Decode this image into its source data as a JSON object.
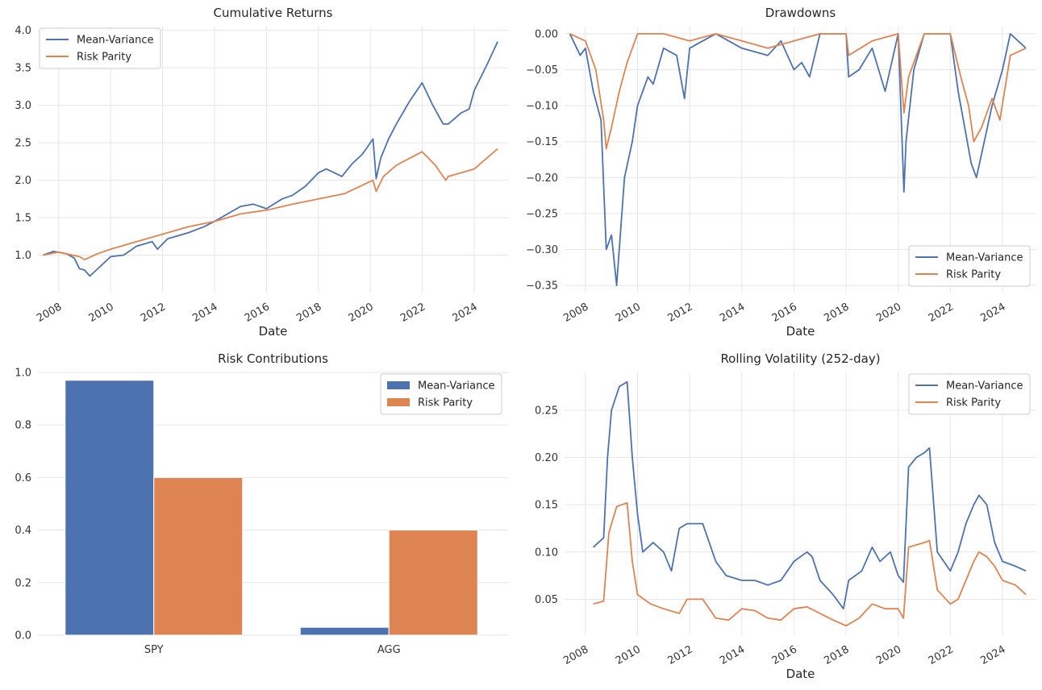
{
  "colors": {
    "mean_variance": "#4c72b0",
    "risk_parity": "#dd8452",
    "grid": "#e6e6e6",
    "text": "#262626"
  },
  "chart_data": [
    {
      "type": "line",
      "title": "Cumulative Returns",
      "xlabel": "Date",
      "ylabel": "",
      "xlim": [
        2007.2,
        2025.3
      ],
      "ylim": [
        0.5,
        4.05
      ],
      "xticks": [
        "2008",
        "2010",
        "2012",
        "2014",
        "2016",
        "2018",
        "2020",
        "2022",
        "2024"
      ],
      "yticks": [
        "1.0",
        "1.5",
        "2.0",
        "2.5",
        "3.0",
        "3.5",
        "4.0"
      ],
      "legend": "top-left",
      "grid": true,
      "series": [
        {
          "name": "Mean-Variance",
          "x": [
            2007.4,
            2007.8,
            2008.3,
            2008.6,
            2008.8,
            2009.0,
            2009.2,
            2009.6,
            2010.0,
            2010.5,
            2011.0,
            2011.6,
            2011.8,
            2012.2,
            2013.0,
            2013.6,
            2014.0,
            2014.5,
            2015.0,
            2015.5,
            2016.0,
            2016.6,
            2017.0,
            2017.5,
            2018.0,
            2018.3,
            2018.9,
            2019.3,
            2019.7,
            2020.1,
            2020.22,
            2020.4,
            2020.7,
            2021.0,
            2021.5,
            2021.99,
            2022.4,
            2022.8,
            2023.0,
            2023.5,
            2023.8,
            2024.0,
            2024.5,
            2024.9
          ],
          "y": [
            1.0,
            1.05,
            1.02,
            0.96,
            0.82,
            0.8,
            0.72,
            0.85,
            0.98,
            1.0,
            1.12,
            1.18,
            1.08,
            1.22,
            1.3,
            1.38,
            1.45,
            1.55,
            1.65,
            1.68,
            1.62,
            1.75,
            1.8,
            1.92,
            2.1,
            2.15,
            2.05,
            2.22,
            2.35,
            2.55,
            2.02,
            2.3,
            2.55,
            2.75,
            3.05,
            3.3,
            3.0,
            2.75,
            2.75,
            2.9,
            2.95,
            3.2,
            3.55,
            3.85
          ]
        },
        {
          "name": "Risk Parity",
          "x": [
            2007.4,
            2008.0,
            2008.8,
            2009.0,
            2009.5,
            2010.0,
            2011.0,
            2012.0,
            2013.0,
            2014.0,
            2015.0,
            2016.0,
            2017.0,
            2018.0,
            2019.0,
            2020.1,
            2020.22,
            2020.5,
            2021.0,
            2021.99,
            2022.5,
            2022.9,
            2023.0,
            2023.5,
            2024.0,
            2024.5,
            2024.9
          ],
          "y": [
            1.0,
            1.04,
            0.98,
            0.94,
            1.02,
            1.08,
            1.18,
            1.28,
            1.38,
            1.45,
            1.55,
            1.6,
            1.68,
            1.75,
            1.82,
            2.0,
            1.85,
            2.05,
            2.2,
            2.38,
            2.2,
            2.0,
            2.05,
            2.1,
            2.15,
            2.3,
            2.42
          ]
        }
      ]
    },
    {
      "type": "line",
      "title": "Drawdowns",
      "xlabel": "Date",
      "ylabel": "",
      "xlim": [
        2007.2,
        2025.3
      ],
      "ylim": [
        -0.36,
        0.01
      ],
      "xticks": [
        "2008",
        "2010",
        "2012",
        "2014",
        "2016",
        "2018",
        "2020",
        "2022",
        "2024"
      ],
      "yticks": [
        "0.00",
        "−0.05",
        "−0.10",
        "−0.15",
        "−0.20",
        "−0.25",
        "−0.30",
        "−0.35"
      ],
      "legend": "bottom-right",
      "grid": true,
      "series": [
        {
          "name": "Mean-Variance",
          "x": [
            2007.4,
            2007.8,
            2008.0,
            2008.3,
            2008.6,
            2008.8,
            2009.0,
            2009.2,
            2009.5,
            2009.8,
            2010.0,
            2010.4,
            2010.6,
            2011.0,
            2011.5,
            2011.8,
            2012.0,
            2012.5,
            2013.0,
            2013.5,
            2014.0,
            2015.0,
            2015.5,
            2016.0,
            2016.3,
            2016.6,
            2017.0,
            2018.0,
            2018.1,
            2018.5,
            2019.0,
            2019.5,
            2020.0,
            2020.22,
            2020.3,
            2020.6,
            2021.0,
            2021.5,
            2022.0,
            2022.3,
            2022.5,
            2022.8,
            2023.0,
            2023.3,
            2023.6,
            2024.0,
            2024.3,
            2024.6,
            2024.9
          ],
          "y": [
            0.0,
            -0.03,
            -0.02,
            -0.08,
            -0.12,
            -0.3,
            -0.28,
            -0.35,
            -0.2,
            -0.15,
            -0.1,
            -0.06,
            -0.07,
            -0.02,
            -0.03,
            -0.09,
            -0.02,
            -0.01,
            0.0,
            -0.01,
            -0.02,
            -0.03,
            -0.01,
            -0.05,
            -0.04,
            -0.06,
            0.0,
            0.0,
            -0.06,
            -0.05,
            -0.02,
            -0.08,
            0.0,
            -0.22,
            -0.15,
            -0.05,
            0.0,
            0.0,
            0.0,
            -0.08,
            -0.12,
            -0.18,
            -0.2,
            -0.15,
            -0.1,
            -0.05,
            0.0,
            -0.01,
            -0.02
          ]
        },
        {
          "name": "Risk Parity",
          "x": [
            2007.4,
            2008.0,
            2008.4,
            2008.7,
            2008.8,
            2009.0,
            2009.3,
            2009.6,
            2010.0,
            2011.0,
            2012.0,
            2013.0,
            2014.0,
            2015.0,
            2016.0,
            2017.0,
            2018.0,
            2018.1,
            2019.0,
            2020.0,
            2020.22,
            2020.4,
            2020.7,
            2021.0,
            2022.0,
            2022.4,
            2022.7,
            2022.9,
            2023.2,
            2023.6,
            2023.9,
            2024.3,
            2024.9
          ],
          "y": [
            0.0,
            -0.01,
            -0.05,
            -0.12,
            -0.16,
            -0.13,
            -0.08,
            -0.04,
            0.0,
            0.0,
            -0.01,
            0.0,
            -0.01,
            -0.02,
            -0.01,
            0.0,
            0.0,
            -0.03,
            -0.01,
            0.0,
            -0.11,
            -0.06,
            -0.03,
            0.0,
            0.0,
            -0.06,
            -0.1,
            -0.15,
            -0.13,
            -0.09,
            -0.12,
            -0.03,
            -0.02
          ]
        }
      ]
    },
    {
      "type": "bar",
      "title": "Risk Contributions",
      "xlabel": "",
      "ylabel": "",
      "categories": [
        "SPY",
        "AGG"
      ],
      "ylim": [
        0,
        1.0
      ],
      "yticks": [
        "0.0",
        "0.2",
        "0.4",
        "0.6",
        "0.8",
        "1.0"
      ],
      "legend": "top-right",
      "grid": true,
      "series": [
        {
          "name": "Mean-Variance",
          "values": [
            0.97,
            0.03
          ]
        },
        {
          "name": "Risk Parity",
          "values": [
            0.6,
            0.4
          ]
        }
      ]
    },
    {
      "type": "line",
      "title": "Rolling Volatility (252-day)",
      "xlabel": "Date",
      "ylabel": "",
      "xlim": [
        2007.2,
        2025.3
      ],
      "ylim": [
        0.012,
        0.29
      ],
      "xticks": [
        "2008",
        "2010",
        "2012",
        "2014",
        "2016",
        "2018",
        "2020",
        "2022",
        "2024"
      ],
      "yticks": [
        "0.05",
        "0.10",
        "0.15",
        "0.20",
        "0.25"
      ],
      "legend": "top-right",
      "grid": true,
      "series": [
        {
          "name": "Mean-Variance",
          "x": [
            2008.3,
            2008.5,
            2008.7,
            2008.85,
            2009.0,
            2009.3,
            2009.6,
            2009.8,
            2010.0,
            2010.2,
            2010.6,
            2011.0,
            2011.3,
            2011.6,
            2011.9,
            2012.5,
            2013.0,
            2013.4,
            2014.0,
            2014.5,
            2015.0,
            2015.5,
            2016.0,
            2016.5,
            2016.7,
            2017.0,
            2017.5,
            2017.9,
            2018.1,
            2018.6,
            2019.0,
            2019.3,
            2019.7,
            2020.0,
            2020.2,
            2020.4,
            2020.7,
            2021.0,
            2021.2,
            2021.5,
            2022.0,
            2022.3,
            2022.6,
            2022.9,
            2023.1,
            2023.4,
            2023.7,
            2024.0,
            2024.5,
            2024.9
          ],
          "y": [
            0.105,
            0.11,
            0.115,
            0.2,
            0.25,
            0.275,
            0.28,
            0.2,
            0.14,
            0.1,
            0.11,
            0.1,
            0.08,
            0.125,
            0.13,
            0.13,
            0.09,
            0.075,
            0.07,
            0.07,
            0.065,
            0.07,
            0.09,
            0.1,
            0.095,
            0.07,
            0.055,
            0.04,
            0.07,
            0.08,
            0.105,
            0.09,
            0.1,
            0.075,
            0.068,
            0.19,
            0.2,
            0.205,
            0.21,
            0.1,
            0.08,
            0.1,
            0.13,
            0.15,
            0.16,
            0.15,
            0.11,
            0.09,
            0.085,
            0.08
          ]
        },
        {
          "name": "Risk Parity",
          "x": [
            2008.3,
            2008.7,
            2008.9,
            2009.2,
            2009.6,
            2009.8,
            2010.0,
            2010.5,
            2011.0,
            2011.6,
            2011.9,
            2012.5,
            2013.0,
            2013.5,
            2014.0,
            2014.5,
            2015.0,
            2015.5,
            2016.0,
            2016.5,
            2017.0,
            2017.5,
            2018.0,
            2018.5,
            2019.0,
            2019.5,
            2020.0,
            2020.2,
            2020.4,
            2021.0,
            2021.2,
            2021.5,
            2022.0,
            2022.3,
            2022.6,
            2022.9,
            2023.1,
            2023.4,
            2023.7,
            2024.0,
            2024.5,
            2024.9
          ],
          "y": [
            0.045,
            0.048,
            0.12,
            0.148,
            0.152,
            0.09,
            0.055,
            0.045,
            0.04,
            0.035,
            0.05,
            0.05,
            0.03,
            0.028,
            0.04,
            0.038,
            0.03,
            0.028,
            0.04,
            0.042,
            0.035,
            0.028,
            0.022,
            0.03,
            0.045,
            0.04,
            0.04,
            0.03,
            0.105,
            0.11,
            0.112,
            0.06,
            0.045,
            0.05,
            0.07,
            0.09,
            0.1,
            0.095,
            0.085,
            0.07,
            0.065,
            0.055
          ]
        }
      ]
    }
  ]
}
